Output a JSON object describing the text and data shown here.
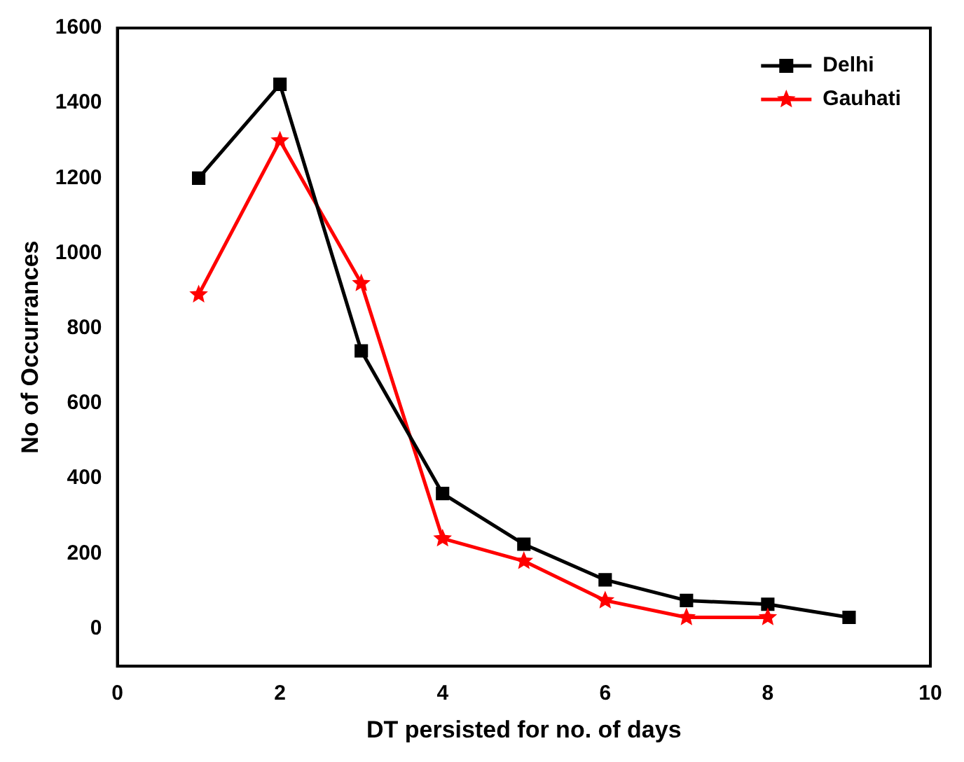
{
  "chart_data": {
    "type": "line",
    "xlabel": "DT persisted for no. of days",
    "ylabel": "No of Occurrances",
    "xlim": [
      0,
      10
    ],
    "xticks": [
      0,
      2,
      4,
      6,
      8,
      10
    ],
    "ylim": [
      -100,
      1600
    ],
    "yticks": [
      0,
      200,
      400,
      600,
      800,
      1000,
      1200,
      1400,
      1600
    ],
    "grid": false,
    "legend": "top right",
    "series": [
      {
        "name": "Delhi",
        "color": "#000000",
        "marker": "square",
        "x": [
          1,
          2,
          3,
          4,
          5,
          6,
          7,
          8,
          9
        ],
        "values": [
          1200,
          1450,
          740,
          360,
          225,
          130,
          75,
          65,
          30
        ]
      },
      {
        "name": "Gauhati",
        "color": "#ff0000",
        "marker": "star",
        "x": [
          1,
          2,
          3,
          4,
          5,
          6,
          7,
          8
        ],
        "values": [
          890,
          1300,
          920,
          240,
          180,
          75,
          30,
          30
        ]
      }
    ]
  }
}
